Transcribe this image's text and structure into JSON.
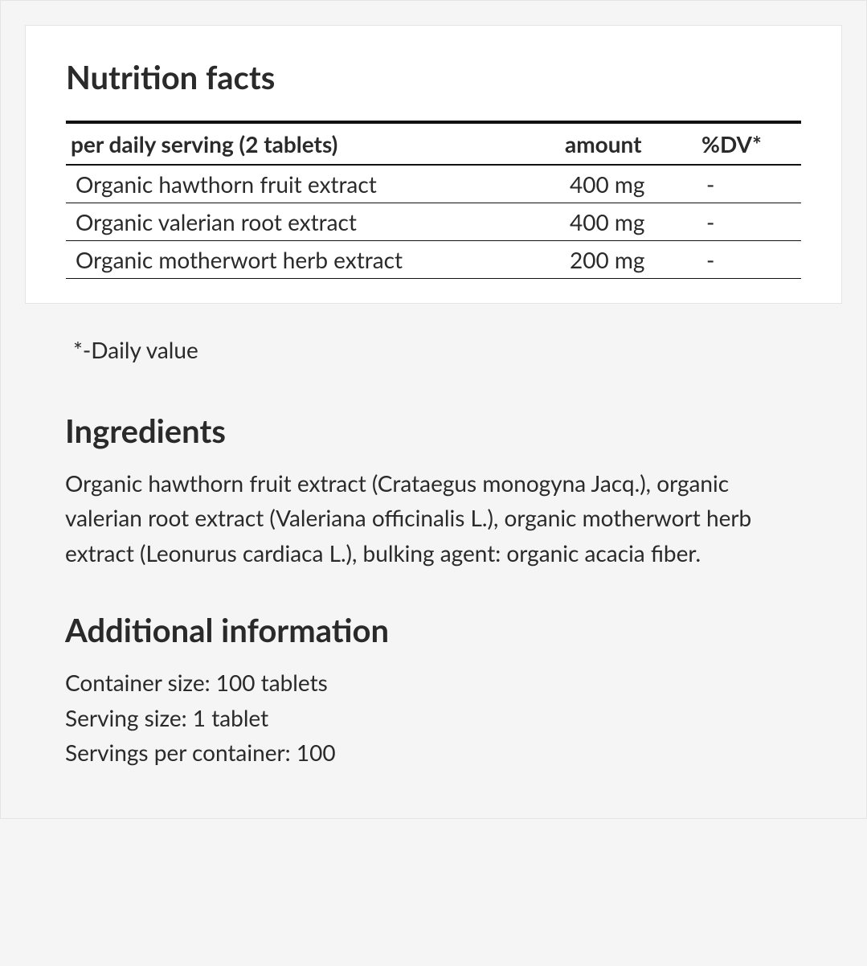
{
  "nutrition": {
    "title": "Nutrition facts",
    "columns": {
      "serving": "per daily serving (2 tablets)",
      "amount": "amount",
      "dv": "%DV*"
    },
    "rows": [
      {
        "name": "Organic hawthorn fruit extract",
        "amount": "400 mg",
        "dv": "-"
      },
      {
        "name": "Organic valerian root extract",
        "amount": "400 mg",
        "dv": "-"
      },
      {
        "name": "Organic motherwort herb extract",
        "amount": "200 mg",
        "dv": "-"
      }
    ],
    "footnote": "*-Daily value"
  },
  "ingredients": {
    "title": "Ingredients",
    "text": "Organic hawthorn fruit extract (Crataegus monogyna Jacq.), organic valerian root extract (Valeriana officinalis L.), organic motherwort herb extract (Leonurus cardiaca L.), bulking agent: organic acacia fiber."
  },
  "additional": {
    "title": "Additional information",
    "lines": [
      "Container size: 100 tablets",
      "Serving size: 1 tablet",
      "Servings per container: 100"
    ]
  },
  "style": {
    "background_color": "#f5f5f5",
    "panel_background": "#ffffff",
    "border_color": "#e5e5e5",
    "text_color": "#2a2a2a",
    "table_border_top": "#111111",
    "heading_fontsize": 40,
    "body_fontsize": 28
  }
}
